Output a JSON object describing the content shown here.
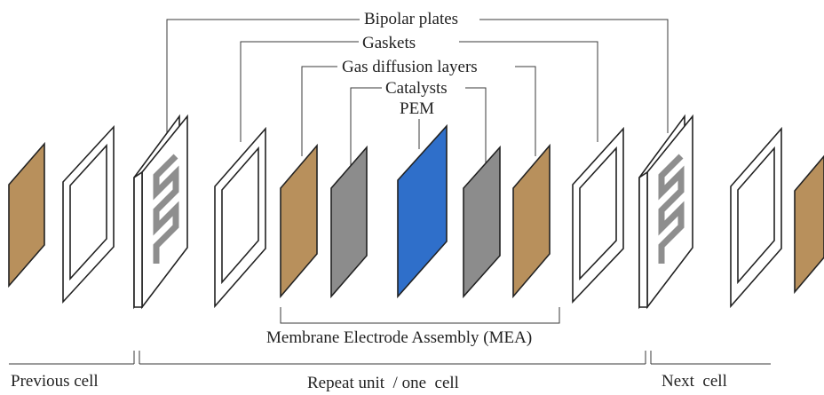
{
  "labels": {
    "bipolar_plates": "Bipolar plates",
    "gaskets": "Gaskets",
    "gas_diffusion_layers": "Gas diffusion layers",
    "catalysts": "Catalysts",
    "pem": "PEM",
    "mea": "Membrane Electrode Assembly (MEA)",
    "previous_cell": "Previous cell",
    "repeat_unit": "Repeat unit  / one  cell",
    "next_cell": "Next  cell"
  },
  "colors": {
    "gas_diffusion_layer": "#b8905c",
    "catalyst": "#8c8c8c",
    "pem": "#2f6fca",
    "plate_channel": "#8e8e8e",
    "gasket": "#ffffff",
    "outline": "#222222"
  }
}
